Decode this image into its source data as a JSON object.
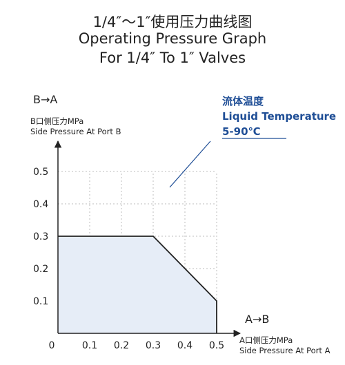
{
  "header": {
    "title_cn": "1/4″〜1″使用压力曲线图",
    "title_en_1": "Operating Pressure Graph",
    "title_en_2": "For 1/4″ To 1″ Valves"
  },
  "chart_data": {
    "type": "area",
    "title": "Operating Pressure Graph For 1/4″ To 1″ Valves",
    "x": [
      0,
      0.3,
      0.5,
      0.5
    ],
    "y": [
      0.3,
      0.3,
      0.1,
      0
    ],
    "xlim": [
      0,
      0.5
    ],
    "ylim": [
      0,
      0.5
    ],
    "x_ticks": [
      "0",
      "0.1",
      "0.2",
      "0.3",
      "0.4",
      "0.5"
    ],
    "y_ticks": [
      "0.1",
      "0.2",
      "0.3",
      "0.4",
      "0.5"
    ],
    "x_ticks_values": [
      0,
      0.1,
      0.2,
      0.3,
      0.4,
      0.5
    ],
    "y_ticks_values": [
      0.1,
      0.2,
      0.3,
      0.4,
      0.5
    ],
    "grid": true,
    "x_direction": "A→B",
    "xlabel_cn": "A口侧压力MPa",
    "xlabel_en": "Side Pressure At Port A",
    "y_direction": "B→A",
    "ylabel_cn": "B口侧压力MPa",
    "ylabel_en": "Side Pressure At Port B",
    "annotation": {
      "cn": "流体温度",
      "en": "Liquid Temperature",
      "range": "5-90℃"
    },
    "colors": {
      "fill": "#e6edf7",
      "line": "#222222",
      "annotation": "#1f4e96",
      "grid": "#bdbdbd"
    }
  }
}
